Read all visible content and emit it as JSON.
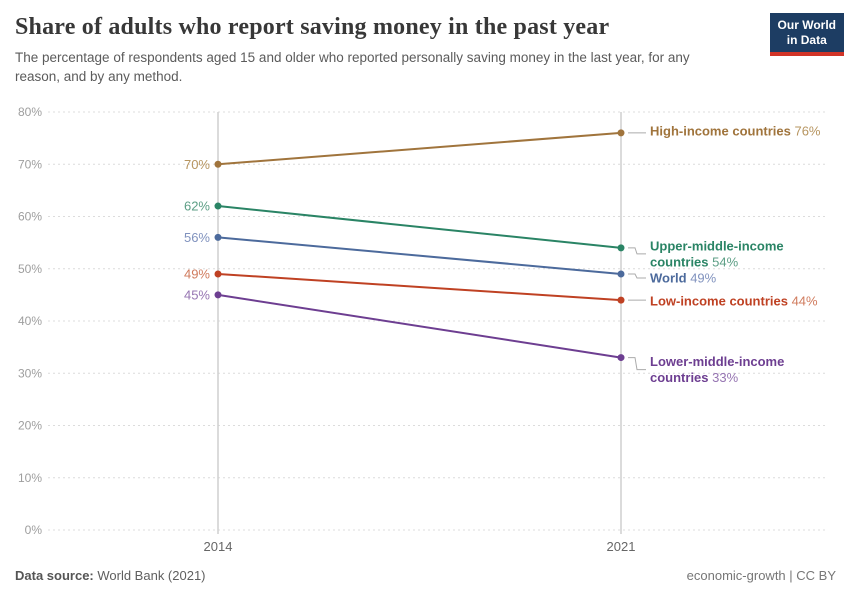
{
  "header": {
    "title": "Share of adults who report saving money in the past year",
    "subtitle": "The percentage of respondents aged 15 and older who reported personally saving money in the last year, for any reason, and by any method.",
    "logo": {
      "line1": "Our World",
      "line2": "in Data",
      "bg_color": "#1d3d63",
      "accent_color": "#d13427"
    }
  },
  "footer": {
    "source_label": "Data source:",
    "source_value": " World Bank (2021)",
    "rights": "economic-growth | CC BY"
  },
  "chart_data": {
    "type": "line",
    "title": "Share of adults who report saving money in the past year",
    "x": [
      2014,
      2021
    ],
    "xlabel": "",
    "ylabel": "",
    "ylim": [
      0,
      80
    ],
    "ytick_step": 10,
    "ytick_suffix": "%",
    "grid": true,
    "legend_position": "right-of-line-ends",
    "axis_colors": {
      "grid": "#dcdcdc",
      "year_line": "#cfcfcf",
      "ytick_text": "#9e9e9e",
      "xtick_text": "#666666",
      "connector": "#ababab"
    },
    "series": [
      {
        "name": "High-income countries",
        "values": [
          70,
          76
        ],
        "color": "#A0743C",
        "value_color": "#B6945F",
        "label_lines": [
          "High-income countries"
        ]
      },
      {
        "name": "Upper-middle-income countries",
        "values": [
          62,
          54
        ],
        "color": "#2A8465",
        "value_color": "#5C9E85",
        "label_lines": [
          "Upper-middle-income",
          "countries"
        ]
      },
      {
        "name": "World",
        "values": [
          56,
          49
        ],
        "color": "#4C6A9C",
        "value_color": "#8092BE",
        "label_lines": [
          "World"
        ]
      },
      {
        "name": "Low-income countries",
        "values": [
          49,
          44
        ],
        "color": "#BF4123",
        "value_color": "#D07B5D",
        "label_lines": [
          "Low-income countries"
        ]
      },
      {
        "name": "Lower-middle-income countries",
        "values": [
          45,
          33
        ],
        "color": "#6D3E91",
        "value_color": "#9675B2",
        "label_lines": [
          "Lower-middle-income",
          "countries"
        ]
      }
    ]
  }
}
